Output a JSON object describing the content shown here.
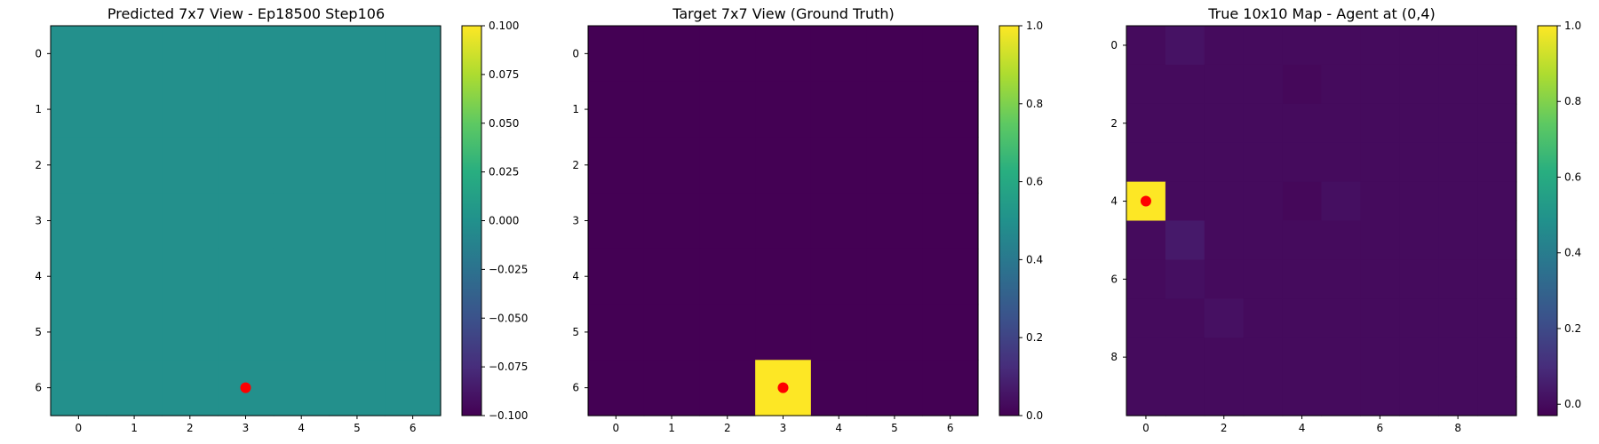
{
  "chart_data": [
    {
      "type": "heatmap",
      "title": "Predicted 7x7 View - Ep18500 Step106",
      "rows": 7,
      "cols": 7,
      "xticks": [
        0,
        1,
        2,
        3,
        4,
        5,
        6
      ],
      "yticks": [
        0,
        1,
        2,
        3,
        4,
        5,
        6
      ],
      "values": [
        [
          0,
          0,
          0,
          0,
          0,
          0,
          0
        ],
        [
          0,
          0,
          0,
          0,
          0,
          0,
          0
        ],
        [
          0,
          0,
          0,
          0,
          0,
          0,
          0
        ],
        [
          0,
          0,
          0,
          0,
          0,
          0,
          0
        ],
        [
          0,
          0,
          0,
          0,
          0,
          0,
          0
        ],
        [
          0,
          0,
          0,
          0,
          0,
          0,
          0
        ],
        [
          0,
          0,
          0,
          0,
          0,
          0,
          0
        ]
      ],
      "vmin": -0.1,
      "vmax": 0.1,
      "colormap": "viridis",
      "colorbar_ticks": [
        "0.100",
        "0.075",
        "0.050",
        "0.025",
        "0.000",
        "−0.025",
        "−0.050",
        "−0.075",
        "−0.100"
      ],
      "colorbar_tick_values": [
        0.1,
        0.075,
        0.05,
        0.025,
        0.0,
        -0.025,
        -0.05,
        -0.075,
        -0.1
      ],
      "marker": {
        "x": 3,
        "y": 6,
        "color": "#ff0000"
      }
    },
    {
      "type": "heatmap",
      "title": "Target 7x7 View (Ground Truth)",
      "rows": 7,
      "cols": 7,
      "xticks": [
        0,
        1,
        2,
        3,
        4,
        5,
        6
      ],
      "yticks": [
        0,
        1,
        2,
        3,
        4,
        5,
        6
      ],
      "values": [
        [
          0,
          0,
          0,
          0,
          0,
          0,
          0
        ],
        [
          0,
          0,
          0,
          0,
          0,
          0,
          0
        ],
        [
          0,
          0,
          0,
          0,
          0,
          0,
          0
        ],
        [
          0,
          0,
          0,
          0,
          0,
          0,
          0
        ],
        [
          0,
          0,
          0,
          0,
          0,
          0,
          0
        ],
        [
          0,
          0,
          0,
          0,
          0,
          0,
          0
        ],
        [
          0,
          0,
          0,
          1,
          0,
          0,
          0
        ]
      ],
      "vmin": 0.0,
      "vmax": 1.0,
      "colormap": "viridis",
      "colorbar_ticks": [
        "1.0",
        "0.8",
        "0.6",
        "0.4",
        "0.2",
        "0.0"
      ],
      "colorbar_tick_values": [
        1.0,
        0.8,
        0.6,
        0.4,
        0.2,
        0.0
      ],
      "marker": {
        "x": 3,
        "y": 6,
        "color": "#ff0000"
      }
    },
    {
      "type": "heatmap",
      "title": "True 10x10 Map - Agent at (0,4)",
      "rows": 10,
      "cols": 10,
      "xticks": [
        0,
        2,
        4,
        6,
        8
      ],
      "yticks": [
        0,
        2,
        4,
        6,
        8
      ],
      "values": [
        [
          0,
          0.02,
          0,
          0,
          0,
          0,
          0,
          0,
          0,
          0
        ],
        [
          0,
          0,
          0,
          0,
          -0.01,
          0,
          0,
          0,
          0,
          0
        ],
        [
          0,
          0,
          0,
          0,
          0,
          0,
          0,
          0,
          0,
          0
        ],
        [
          0,
          0,
          0,
          0,
          0,
          0,
          0,
          0,
          0,
          0
        ],
        [
          1,
          0,
          0,
          0,
          -0.01,
          0.01,
          0,
          0,
          0,
          0
        ],
        [
          0,
          0.04,
          0,
          0,
          0,
          0,
          0,
          0,
          0,
          0
        ],
        [
          0,
          0.01,
          0,
          0,
          0,
          0,
          0,
          0,
          0,
          0
        ],
        [
          0,
          0,
          0.015,
          0,
          0,
          0,
          0,
          0,
          0,
          0
        ],
        [
          0,
          0,
          0,
          0,
          0,
          0,
          0,
          0,
          0,
          0
        ],
        [
          0,
          0,
          0,
          0,
          0,
          0,
          0,
          0,
          0,
          0
        ]
      ],
      "vmin": -0.03,
      "vmax": 1.0,
      "colormap": "viridis",
      "colorbar_ticks": [
        "1.0",
        "0.8",
        "0.6",
        "0.4",
        "0.2",
        "0.0"
      ],
      "colorbar_tick_values": [
        1.0,
        0.8,
        0.6,
        0.4,
        0.2,
        0.0
      ],
      "marker": {
        "x": 0,
        "y": 4,
        "color": "#ff0000"
      }
    }
  ]
}
